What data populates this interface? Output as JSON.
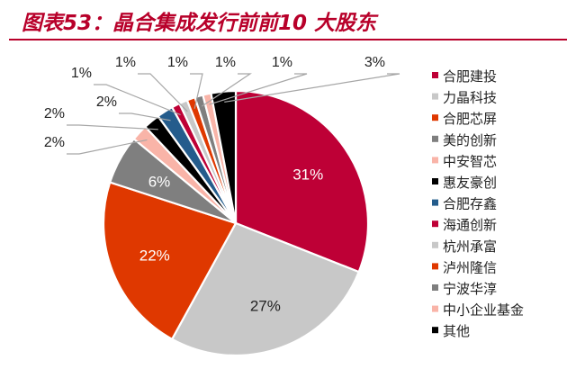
{
  "chart_data": {
    "type": "pie",
    "title": "图表53：晶合集成发行前前10 大股东",
    "legend_position": "right",
    "slices": [
      {
        "label": "合肥建投",
        "value": 31,
        "display": "31%",
        "color": "#be0036"
      },
      {
        "label": "力晶科技",
        "value": 27,
        "display": "27%",
        "color": "#c8c8c8"
      },
      {
        "label": "合肥芯屏",
        "value": 22,
        "display": "22%",
        "color": "#df3800"
      },
      {
        "label": "美的创新",
        "value": 6,
        "display": "6%",
        "color": "#7f7f7f"
      },
      {
        "label": "中安智芯",
        "value": 2,
        "display": "2%",
        "color": "#f9b4a8"
      },
      {
        "label": "惠友豪创",
        "value": 2,
        "display": "2%",
        "color": "#000000"
      },
      {
        "label": "合肥存鑫",
        "value": 2,
        "display": "2%",
        "color": "#245c8c"
      },
      {
        "label": "海通创新",
        "value": 1,
        "display": "1%",
        "color": "#be0036"
      },
      {
        "label": "杭州承富",
        "value": 1,
        "display": "1%",
        "color": "#c8c8c8"
      },
      {
        "label": "泸州隆信",
        "value": 1,
        "display": "1%",
        "color": "#df3800"
      },
      {
        "label": "宁波华淳",
        "value": 1,
        "display": "1%",
        "color": "#7f7f7f"
      },
      {
        "label": "中小企业基金",
        "value": 1,
        "display": "1%",
        "color": "#f9b4a8"
      },
      {
        "label": "其他",
        "value": 3,
        "display": "3%",
        "color": "#000000"
      }
    ]
  }
}
